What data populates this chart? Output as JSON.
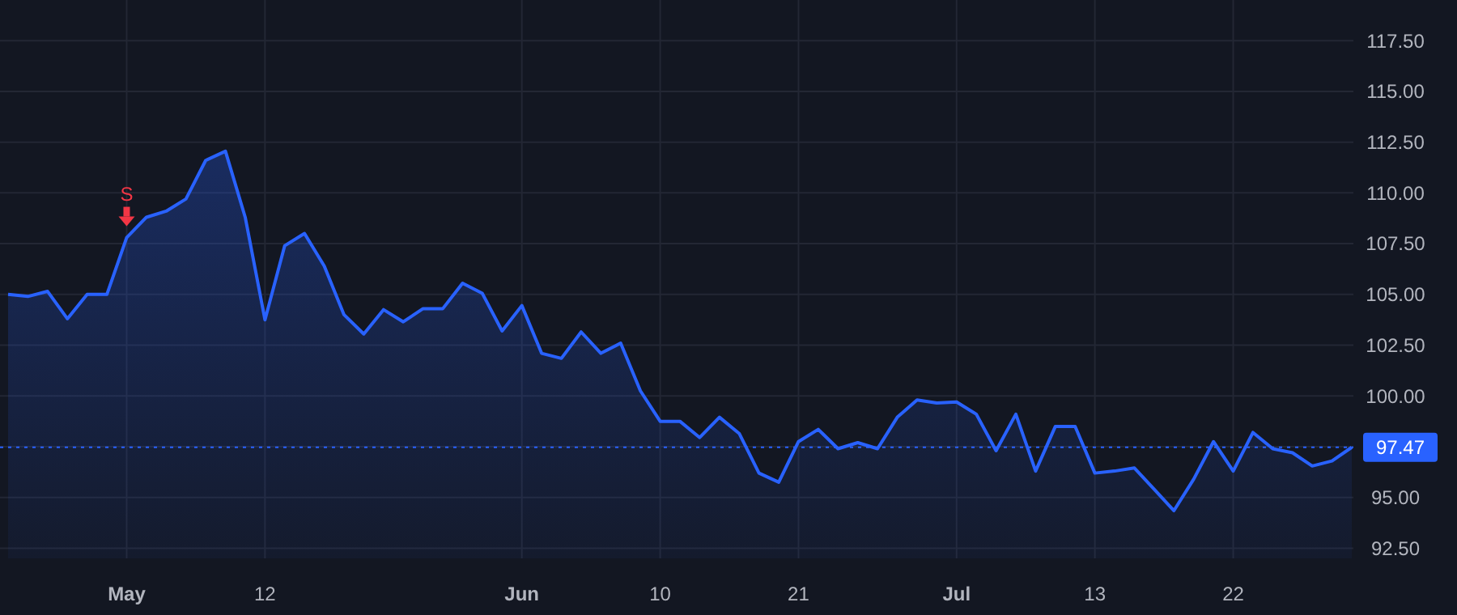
{
  "chart_data": {
    "type": "area",
    "categories": [
      null,
      null,
      null,
      null,
      null,
      null,
      "May",
      null,
      null,
      null,
      null,
      null,
      null,
      "12",
      null,
      null,
      null,
      null,
      null,
      null,
      null,
      null,
      null,
      null,
      null,
      null,
      "Jun",
      null,
      null,
      null,
      null,
      null,
      null,
      "10",
      null,
      null,
      null,
      null,
      null,
      null,
      "21",
      null,
      null,
      null,
      null,
      null,
      null,
      null,
      "Jul",
      null,
      null,
      null,
      null,
      null,
      null,
      "13",
      null,
      null,
      null,
      null,
      null,
      null,
      "22",
      null,
      null,
      null,
      null,
      null,
      null
    ],
    "series": [
      {
        "color": "#2962ff",
        "values": [
          105.0,
          104.9,
          105.15,
          103.8,
          105.0,
          105.0,
          107.8,
          108.8,
          109.1,
          109.7,
          111.6,
          112.05,
          108.8,
          103.75,
          107.4,
          108.0,
          106.4,
          104.0,
          103.05,
          104.25,
          103.65,
          104.3,
          104.3,
          105.55,
          105.05,
          103.2,
          104.45,
          102.1,
          101.85,
          103.15,
          102.1,
          102.6,
          100.25,
          98.75,
          98.75,
          97.95,
          98.95,
          98.15,
          96.2,
          95.75,
          97.75,
          98.35,
          97.4,
          97.7,
          97.4,
          98.95,
          99.8,
          99.65,
          99.7,
          99.1,
          97.3,
          99.1,
          96.3,
          98.5,
          98.5,
          96.2,
          96.3,
          96.45,
          95.4,
          94.35,
          95.9,
          97.75,
          96.3,
          98.2,
          97.4,
          97.2,
          96.55,
          96.8,
          97.47
        ]
      }
    ],
    "ylim": [
      92,
      119.5
    ],
    "yticks": [
      {
        "value": 92.5,
        "label": "92.50"
      },
      {
        "value": 95,
        "label": "95.00"
      },
      {
        "value": 97.5,
        "label": null
      },
      {
        "value": 100,
        "label": "100.00"
      },
      {
        "value": 102.5,
        "label": "102.50"
      },
      {
        "value": 105,
        "label": "105.00"
      },
      {
        "value": 107.5,
        "label": "107.50"
      },
      {
        "value": 110,
        "label": "110.00"
      },
      {
        "value": 112.5,
        "label": "112.50"
      },
      {
        "value": 115,
        "label": "115.00"
      },
      {
        "value": 117.5,
        "label": "117.50"
      }
    ],
    "grid": true,
    "ref_lines": [
      {
        "axis": "y",
        "value": 97.47,
        "label": "97.47",
        "color": "#2962ff",
        "line_style": "dotted"
      }
    ],
    "annotations": [
      {
        "text": "S",
        "x": "May",
        "y": 107.8
      }
    ]
  }
}
